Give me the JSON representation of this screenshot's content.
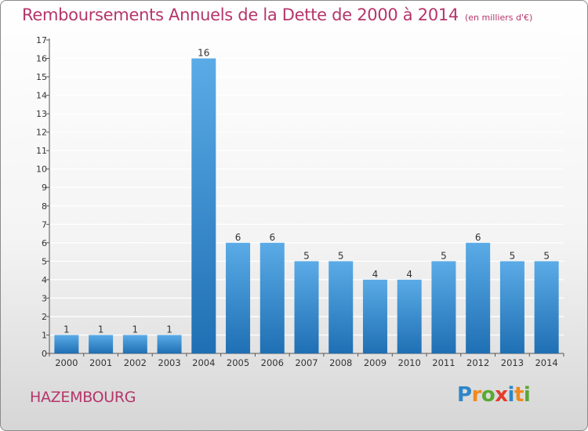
{
  "title": "Remboursements Annuels de la Dette de 2000 à 2014",
  "unit": "(en milliers d'€)",
  "city": "HAZEMBOURG",
  "brand": {
    "text": "Proxiti",
    "letter_colors": [
      "#2e86c8",
      "#f08a1c",
      "#5aa832",
      "#e23c2c",
      "#2e86c8",
      "#f08a1c",
      "#5aa832"
    ]
  },
  "colors": {
    "title": "#b5356a",
    "bar_top": "#5aabe6",
    "bar_bottom": "#1f6fb4",
    "gridline": "#ffffff",
    "axis": "#555555"
  },
  "chart_data": {
    "type": "bar",
    "categories": [
      "2000",
      "2001",
      "2002",
      "2003",
      "2004",
      "2005",
      "2006",
      "2007",
      "2008",
      "2009",
      "2010",
      "2011",
      "2012",
      "2013",
      "2014"
    ],
    "values": [
      1,
      1,
      1,
      1,
      16,
      6,
      6,
      5,
      5,
      4,
      4,
      5,
      6,
      5,
      5
    ],
    "yticks": [
      0,
      1,
      2,
      3,
      4,
      5,
      6,
      7,
      8,
      9,
      10,
      11,
      12,
      13,
      14,
      15,
      16,
      17
    ],
    "ylim": [
      0,
      17
    ],
    "grid": true,
    "data_labels": true
  }
}
